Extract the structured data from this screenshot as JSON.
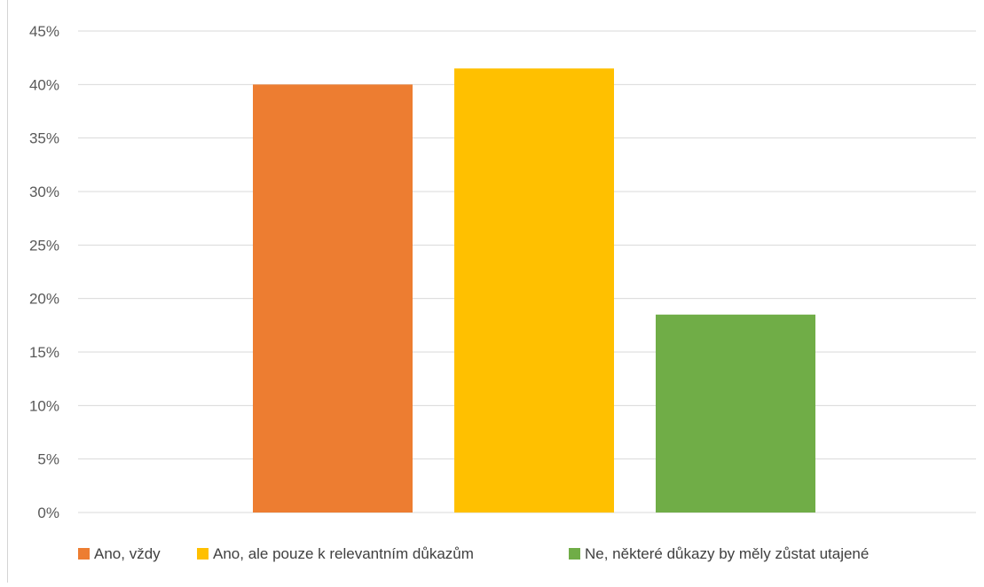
{
  "chart_data": {
    "type": "bar",
    "categories": [
      "Ano, vždy",
      "Ano, ale pouze k relevantním důkazům",
      "Ne, některé důkazy by měly zůstat utajené"
    ],
    "values": [
      40,
      41.5,
      18.5
    ],
    "value_unit": "%",
    "ylim": [
      0,
      45
    ],
    "yticks": [
      "0%",
      "5%",
      "10%",
      "15%",
      "20%",
      "25%",
      "30%",
      "35%",
      "40%",
      "45%"
    ],
    "ytick_values": [
      0,
      5,
      10,
      15,
      20,
      25,
      30,
      35,
      40,
      45
    ],
    "colors": [
      "#ED7D31",
      "#FFC000",
      "#70AD47"
    ],
    "grid": true,
    "legend": {
      "position": "bottom",
      "entries": [
        "Ano, vždy",
        "Ano, ale pouze k relevantním důkazům",
        "Ne, některé důkazy by měly zůstat utajené"
      ]
    },
    "title": "",
    "xlabel": "",
    "ylabel": ""
  }
}
